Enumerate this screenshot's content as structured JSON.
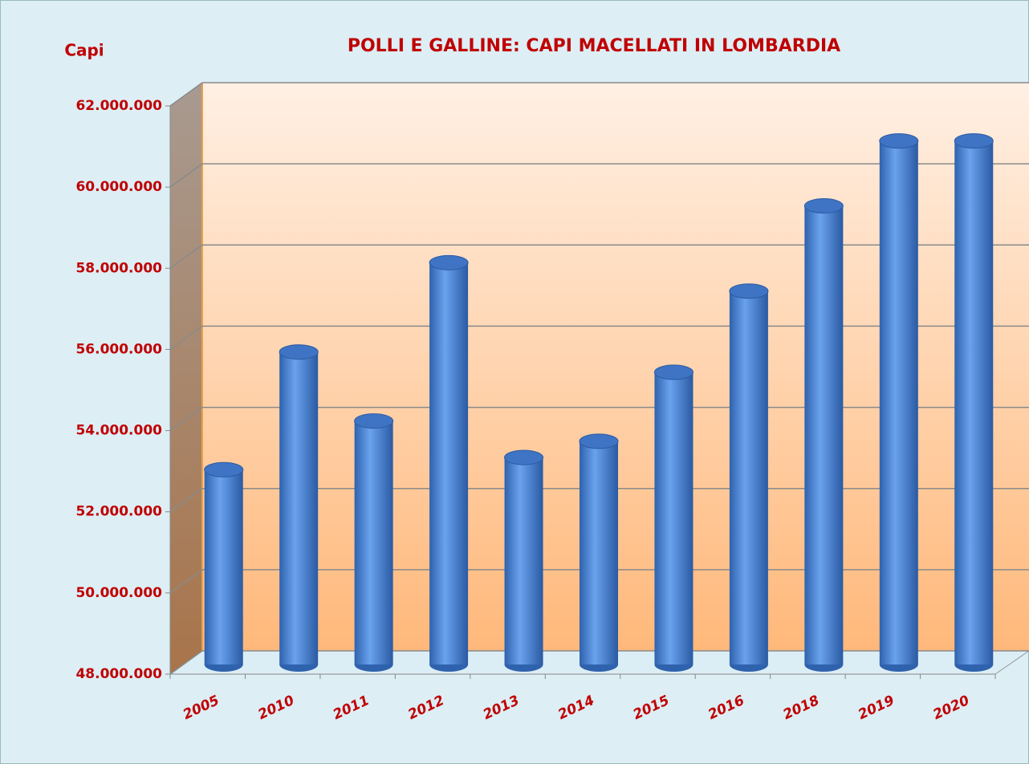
{
  "chart_data": {
    "type": "bar",
    "title": "POLLI E GALLINE: CAPI MACELLATI  IN LOMBARDIA",
    "ylabel": "Capi",
    "categories": [
      "2005",
      "2010",
      "2011",
      "2012",
      "2013",
      "2014",
      "2015",
      "2016",
      "2018",
      "2019",
      "2020"
    ],
    "values": [
      52800000,
      55700000,
      54000000,
      57900000,
      53100000,
      53500000,
      55200000,
      57200000,
      59300000,
      60900000,
      60900000
    ],
    "color": "#4f86d6",
    "ylim": [
      48000000,
      62000000
    ],
    "yticks": [
      {
        "value": 48000000,
        "label": "48.000.000"
      },
      {
        "value": 50000000,
        "label": "50.000.000"
      },
      {
        "value": 52000000,
        "label": "52.000.000"
      },
      {
        "value": 54000000,
        "label": "54.000.000"
      },
      {
        "value": 56000000,
        "label": "56.000.000"
      },
      {
        "value": 58000000,
        "label": "58.000.000"
      },
      {
        "value": 60000000,
        "label": "60.000.000"
      },
      {
        "value": 62000000,
        "label": "62.000.000"
      }
    ],
    "grid": true
  }
}
